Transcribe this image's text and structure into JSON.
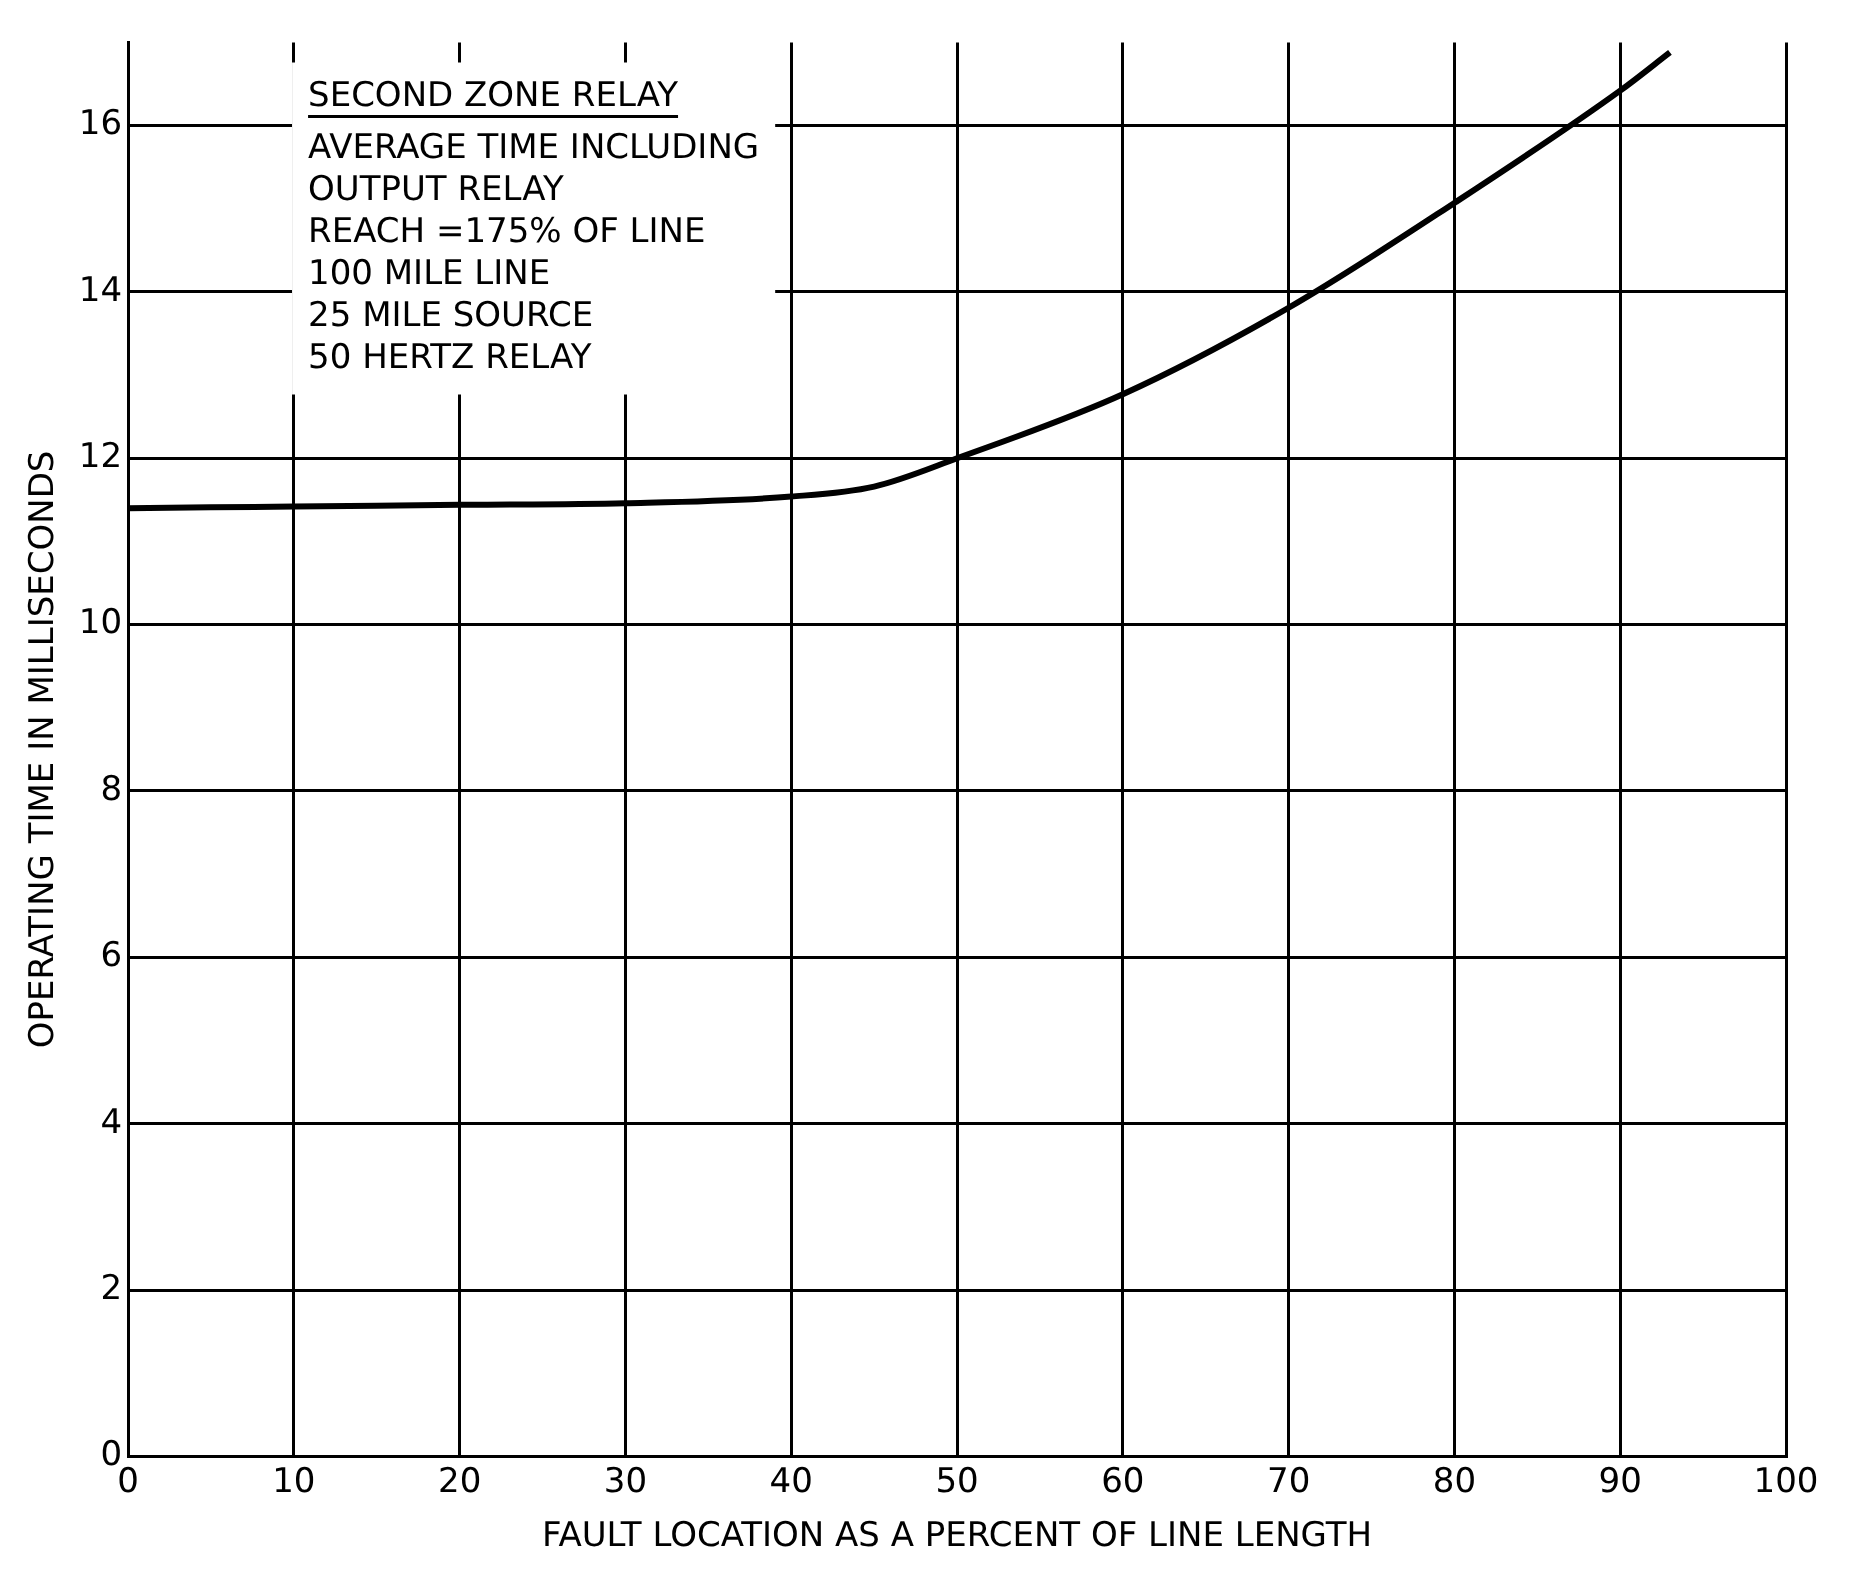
{
  "chart_data": {
    "type": "line",
    "title": "SECOND ZONE RELAY",
    "annotations": [
      "AVERAGE TIME INCLUDING",
      "OUTPUT RELAY",
      "REACH =175% OF LINE",
      "100 MILE LINE",
      "25 MILE SOURCE",
      "50 HERTZ RELAY"
    ],
    "xlabel": "FAULT LOCATION AS A PERCENT OF LINE LENGTH",
    "ylabel": "OPERATING TIME IN MILLISECONDS",
    "series": [
      {
        "color": "#000000",
        "x": [
          0,
          10,
          20,
          30,
          40,
          45,
          50,
          60,
          70,
          80,
          90,
          93
        ],
        "values": [
          11.4,
          11.42,
          11.44,
          11.46,
          11.54,
          11.66,
          12.0,
          12.77,
          13.81,
          15.07,
          16.42,
          16.88
        ]
      }
    ],
    "xlim": [
      0,
      100
    ],
    "xticks": [
      0,
      10,
      20,
      30,
      40,
      50,
      60,
      70,
      80,
      90,
      100
    ],
    "ylim": [
      0,
      17
    ],
    "yticks": [
      0,
      2,
      4,
      6,
      8,
      10,
      12,
      14,
      16
    ],
    "grid": true,
    "marker": "none",
    "line_style": "solid",
    "legend": false
  }
}
